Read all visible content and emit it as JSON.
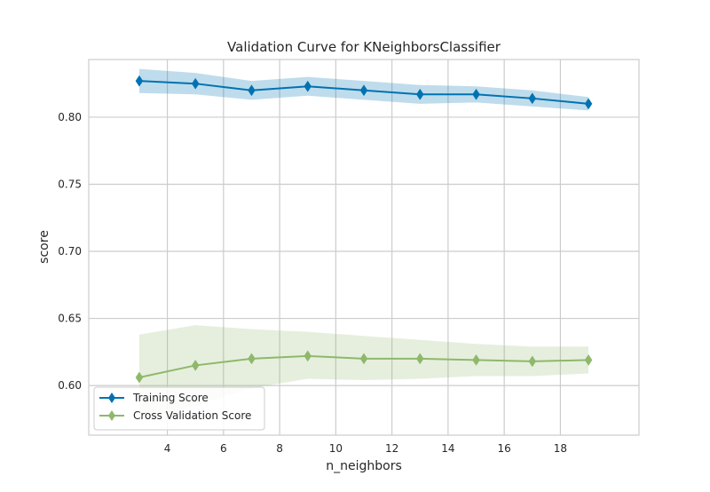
{
  "chart_data": {
    "type": "line",
    "title": "Validation Curve for KNeighborsClassifier",
    "xlabel": "n_neighbors",
    "ylabel": "score",
    "x": [
      3,
      5,
      7,
      9,
      11,
      13,
      15,
      17,
      19
    ],
    "xlim": [
      1.2,
      20.8
    ],
    "ylim": [
      0.563,
      0.843
    ],
    "xticks": [
      "4",
      "6",
      "8",
      "10",
      "12",
      "14",
      "16",
      "18"
    ],
    "yticks": [
      "0.60",
      "0.65",
      "0.70",
      "0.75",
      "0.80"
    ],
    "grid": true,
    "legend_position": "lower-left",
    "series": [
      {
        "name": "Training Score",
        "color": "#0072b2",
        "marker": "diamond",
        "values": [
          0.827,
          0.825,
          0.82,
          0.823,
          0.82,
          0.817,
          0.817,
          0.814,
          0.81
        ],
        "band_upper": [
          0.836,
          0.833,
          0.827,
          0.83,
          0.827,
          0.824,
          0.823,
          0.82,
          0.815
        ],
        "band_lower": [
          0.818,
          0.817,
          0.813,
          0.816,
          0.813,
          0.81,
          0.811,
          0.808,
          0.805
        ]
      },
      {
        "name": "Cross Validation Score",
        "color": "#8fb86b",
        "marker": "diamond",
        "values": [
          0.606,
          0.615,
          0.62,
          0.622,
          0.62,
          0.62,
          0.619,
          0.618,
          0.619
        ],
        "band_upper": [
          0.638,
          0.645,
          0.642,
          0.64,
          0.637,
          0.634,
          0.631,
          0.629,
          0.629
        ],
        "band_lower": [
          0.574,
          0.585,
          0.598,
          0.605,
          0.604,
          0.605,
          0.607,
          0.607,
          0.609
        ]
      }
    ]
  }
}
